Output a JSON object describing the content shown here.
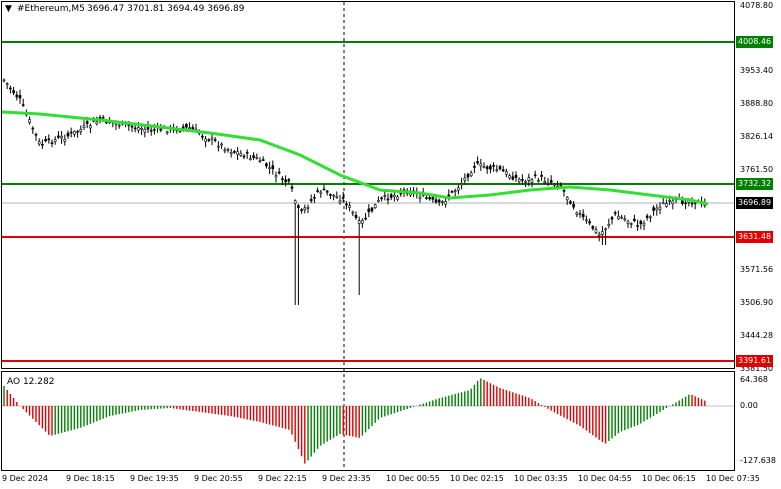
{
  "header": {
    "arrow_icon": "triangle-down-icon",
    "title": "#Ethereum,M5",
    "ohlc": "3696.47 3701.81 3694.49 3696.89"
  },
  "price_axis": {
    "labels": [
      "4078.80",
      "3953.40",
      "3888.80",
      "3826.14",
      "3761.50",
      "3696.89",
      "3631.48",
      "3571.56",
      "3506.90",
      "3444.28",
      "3381.50"
    ]
  },
  "levels": {
    "level_1": {
      "value": "4008.46",
      "color": "#008000"
    },
    "level_2": {
      "value": "3732.32",
      "color": "#008000"
    },
    "current": {
      "value": "3696.89",
      "color": "#000000"
    },
    "level_3": {
      "value": "3631.48",
      "color": "#e00000"
    },
    "level_4": {
      "value": "3391.61",
      "color": "#e00000"
    }
  },
  "ao_panel": {
    "title": "AO 12.282",
    "axis_labels": [
      "64.368",
      "0.00",
      "-127.638"
    ],
    "up_color": "#008000",
    "down_color": "#e00000"
  },
  "time_axis": {
    "labels": [
      "9 Dec 2024",
      "9 Dec 18:15",
      "9 Dec 19:35",
      "9 Dec 20:55",
      "9 Dec 22:15",
      "9 Dec 23:35",
      "10 Dec 00:55",
      "10 Dec 02:15",
      "10 Dec 03:35",
      "10 Dec 04:55",
      "10 Dec 06:15",
      "10 Dec 07:35"
    ]
  },
  "colors": {
    "moving_average": "#33dd33",
    "candle": "#000000"
  }
}
